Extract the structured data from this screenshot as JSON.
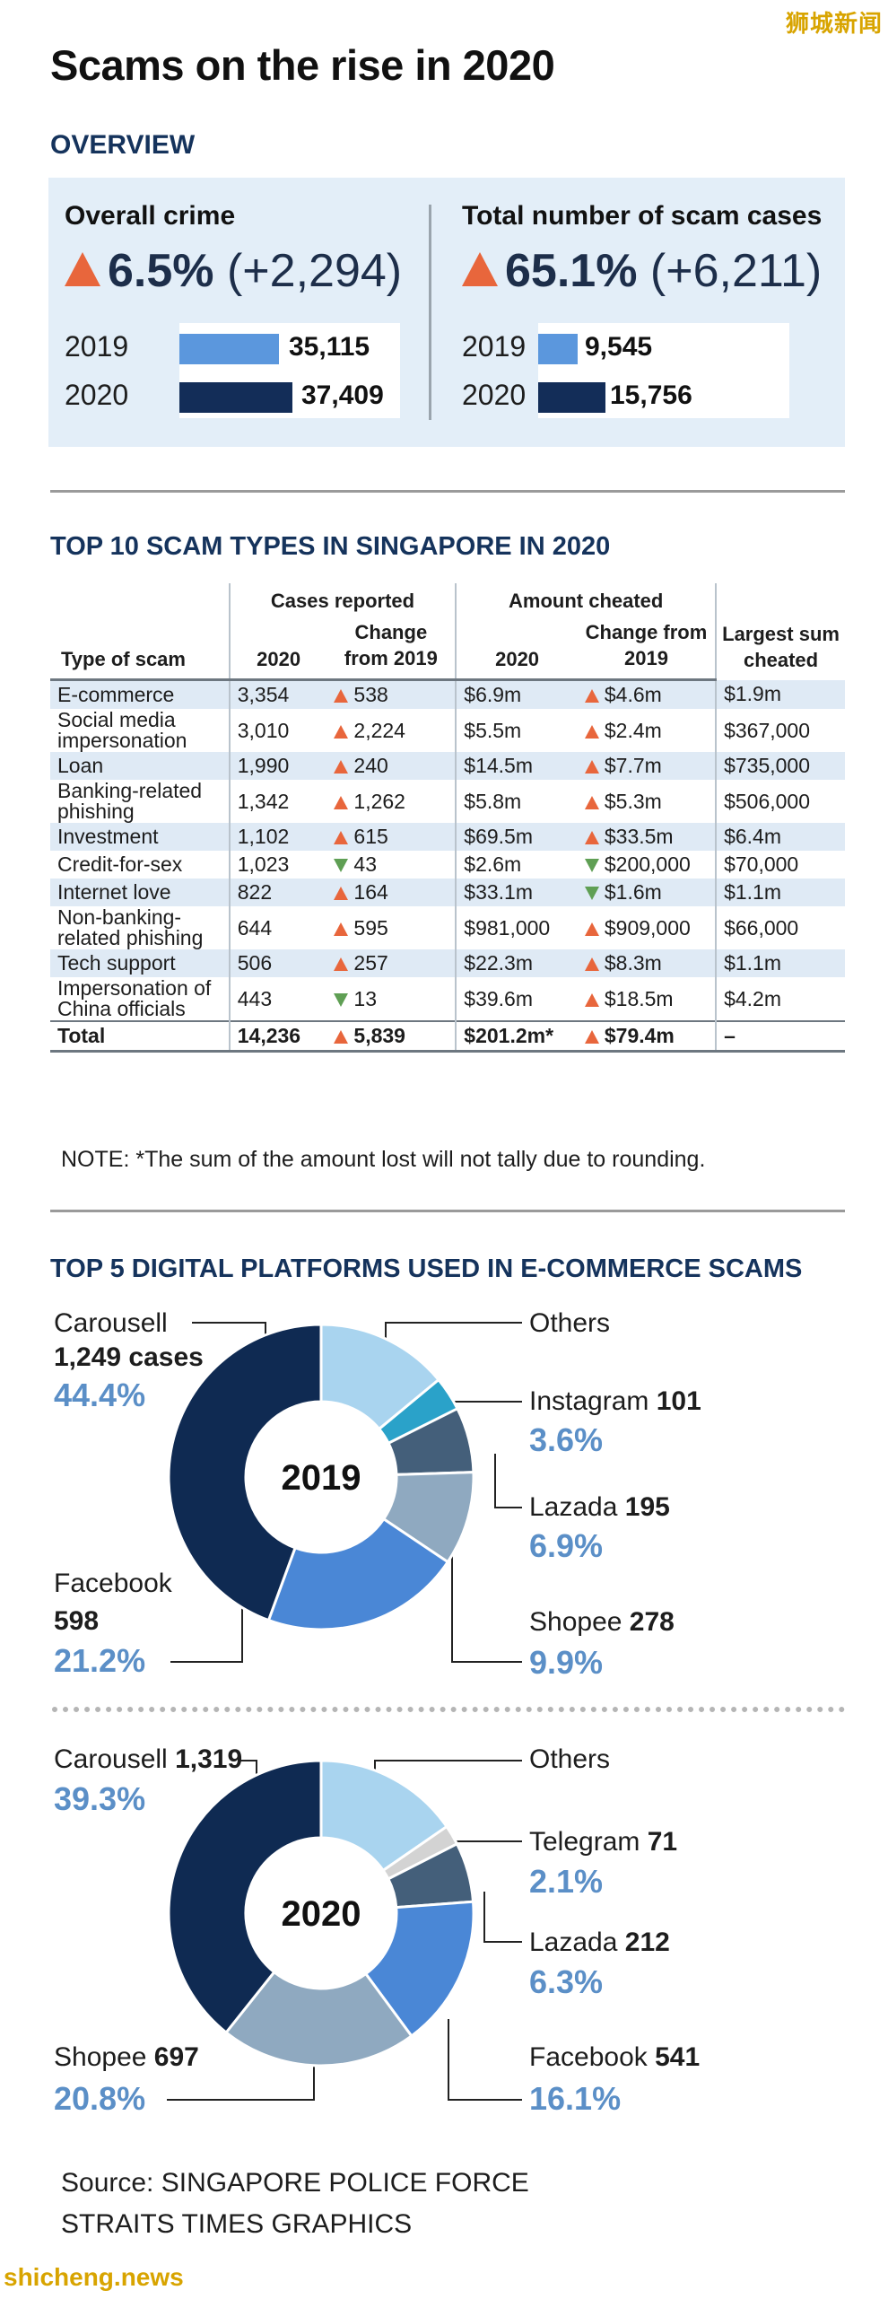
{
  "watermark_top": "狮城新闻",
  "watermark_bottom": "shicheng.news",
  "title": "Scams on the rise in 2020",
  "overview": {
    "label": "OVERVIEW",
    "overall": {
      "heading": "Overall crime",
      "pct": "6.5%",
      "delta": "(+2,294)",
      "rows": [
        {
          "year": "2019",
          "value": 35115,
          "value_label": "35,115"
        },
        {
          "year": "2020",
          "value": 37409,
          "value_label": "37,409"
        }
      ]
    },
    "scams": {
      "heading": "Total number of scam cases",
      "pct": "65.1%",
      "delta": "(+6,211)",
      "rows": [
        {
          "year": "2019",
          "value": 9545,
          "value_label": "9,545"
        },
        {
          "year": "2020",
          "value": 15756,
          "value_label": "15,756"
        }
      ]
    },
    "colors": {
      "y2019": "#5b97dd",
      "y2020": "#132d58",
      "up_arrow": "#e8663c"
    }
  },
  "table": {
    "title": "TOP 10 SCAM TYPES IN SINGAPORE IN 2020",
    "group_cases": "Cases reported",
    "group_amount": "Amount cheated",
    "col_type": "Type of scam",
    "col_2020": "2020",
    "col_change": "Change from 2019",
    "col_largest": "Largest sum cheated",
    "rows": [
      {
        "type": "E-commerce",
        "cases": "3,354",
        "cases_dir": "up",
        "cases_change": "538",
        "amount": "$6.9m",
        "amount_dir": "up",
        "amount_change": "$4.6m",
        "largest": "$1.9m"
      },
      {
        "type": "Social media impersonation",
        "cases": "3,010",
        "cases_dir": "up",
        "cases_change": "2,224",
        "amount": "$5.5m",
        "amount_dir": "up",
        "amount_change": "$2.4m",
        "largest": "$367,000"
      },
      {
        "type": "Loan",
        "cases": "1,990",
        "cases_dir": "up",
        "cases_change": "240",
        "amount": "$14.5m",
        "amount_dir": "up",
        "amount_change": "$7.7m",
        "largest": "$735,000"
      },
      {
        "type": "Banking-related phishing",
        "cases": "1,342",
        "cases_dir": "up",
        "cases_change": "1,262",
        "amount": "$5.8m",
        "amount_dir": "up",
        "amount_change": "$5.3m",
        "largest": "$506,000"
      },
      {
        "type": "Investment",
        "cases": "1,102",
        "cases_dir": "up",
        "cases_change": "615",
        "amount": "$69.5m",
        "amount_dir": "up",
        "amount_change": "$33.5m",
        "largest": "$6.4m"
      },
      {
        "type": "Credit-for-sex",
        "cases": "1,023",
        "cases_dir": "down",
        "cases_change": "43",
        "amount": "$2.6m",
        "amount_dir": "down",
        "amount_change": "$200,000",
        "largest": "$70,000"
      },
      {
        "type": "Internet love",
        "cases": "822",
        "cases_dir": "up",
        "cases_change": "164",
        "amount": "$33.1m",
        "amount_dir": "down",
        "amount_change": "$1.6m",
        "largest": "$1.1m"
      },
      {
        "type": "Non-banking-related phishing",
        "cases": "644",
        "cases_dir": "up",
        "cases_change": "595",
        "amount": "$981,000",
        "amount_dir": "up",
        "amount_change": "$909,000",
        "largest": "$66,000"
      },
      {
        "type": "Tech support",
        "cases": "506",
        "cases_dir": "up",
        "cases_change": "257",
        "amount": "$22.3m",
        "amount_dir": "up",
        "amount_change": "$8.3m",
        "largest": "$1.1m"
      },
      {
        "type": "Impersonation of China officials",
        "cases": "443",
        "cases_dir": "down",
        "cases_change": "13",
        "amount": "$39.6m",
        "amount_dir": "up",
        "amount_change": "$18.5m",
        "largest": "$4.2m"
      }
    ],
    "total": {
      "type": "Total",
      "cases": "14,236",
      "cases_dir": "up",
      "cases_change": "5,839",
      "amount": "$201.2m*",
      "amount_dir": "up",
      "amount_change": "$79.4m",
      "largest": "–"
    },
    "note": "NOTE: *The sum of the amount lost will not tally due to rounding."
  },
  "chart_data": [
    {
      "type": "pie",
      "title": "TOP 5 DIGITAL PLATFORMS USED IN E-COMMERCE SCAMS",
      "center_label": "2019",
      "slices": [
        {
          "name": "Carousell",
          "cases": 1249,
          "cases_label": "1,249 cases",
          "percent": 44.4,
          "percent_label": "44.4%",
          "color": "#0f2a52"
        },
        {
          "name": "Facebook",
          "cases": 598,
          "cases_label": "598",
          "percent": 21.2,
          "percent_label": "21.2%",
          "color": "#4a87d6"
        },
        {
          "name": "Shopee",
          "cases": 278,
          "cases_label": "278",
          "percent": 9.9,
          "percent_label": "9.9%",
          "color": "#8fa9c0"
        },
        {
          "name": "Lazada",
          "cases": 195,
          "cases_label": "195",
          "percent": 6.9,
          "percent_label": "6.9%",
          "color": "#445f7a"
        },
        {
          "name": "Instagram",
          "cases": 101,
          "cases_label": "101",
          "percent": 3.6,
          "percent_label": "3.6%",
          "color": "#2aa2c9"
        },
        {
          "name": "Others",
          "cases_label": "",
          "percent": 14.0,
          "percent_label": "",
          "color": "#a9d4ef"
        }
      ]
    },
    {
      "type": "pie",
      "title": "",
      "center_label": "2020",
      "slices": [
        {
          "name": "Carousell",
          "cases": 1319,
          "cases_label": "1,319",
          "percent": 39.3,
          "percent_label": "39.3%",
          "color": "#0f2a52"
        },
        {
          "name": "Shopee",
          "cases": 697,
          "cases_label": "697",
          "percent": 20.8,
          "percent_label": "20.8%",
          "color": "#8fa9c0"
        },
        {
          "name": "Facebook",
          "cases": 541,
          "cases_label": "541",
          "percent": 16.1,
          "percent_label": "16.1%",
          "color": "#4a87d6"
        },
        {
          "name": "Lazada",
          "cases": 212,
          "cases_label": "212",
          "percent": 6.3,
          "percent_label": "6.3%",
          "color": "#445f7a"
        },
        {
          "name": "Telegram",
          "cases": 71,
          "cases_label": "71",
          "percent": 2.1,
          "percent_label": "2.1%",
          "color": "#d3d3d3"
        },
        {
          "name": "Others",
          "cases_label": "",
          "percent": 15.4,
          "percent_label": "",
          "color": "#a9d4ef"
        }
      ]
    }
  ],
  "source_line1": "Source: SINGAPORE POLICE FORCE",
  "source_line2": "STRAITS TIMES GRAPHICS"
}
